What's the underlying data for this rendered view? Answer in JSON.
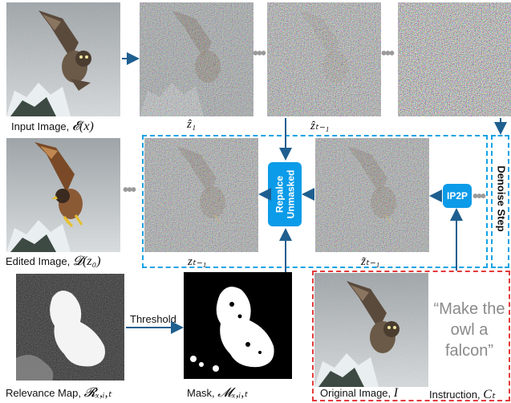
{
  "labels": {
    "input_image": "Input Image, ",
    "input_math": "𝓔(x)",
    "edited_image": "Edited Image, ",
    "edited_math": "𝓓(z₀)",
    "z1": "ẑ₁",
    "zt1_top": "ẑₜ₋₁",
    "zt1_mid": "zₜ₋₁",
    "zt1_tilde": "z̃ₜ₋₁",
    "relevance_map": "Relevance Map, ",
    "relevance_math": "𝓡ₓ,ᵢ,ₜ",
    "mask": "Mask, ",
    "mask_math": "𝓜ₓ,ᵢ,ₜ",
    "original_image": "Original Image, ",
    "original_math": "I",
    "instruction": "Instruction, ",
    "instruction_math": "Cₜ",
    "threshold": "Threshold",
    "ip2p": "IP2P",
    "replace_line1": "Repalce",
    "replace_line2": "Unmasked",
    "denoise_step": "Denoise Step",
    "quote": "“Make the owl a falcon”"
  },
  "colors": {
    "accent_blue": "#0c9be8",
    "dashed_blue": "#13a2e6",
    "dashed_red": "#e23b3b",
    "arrow": "#1f5f8f",
    "quote_gray": "#8a8a8a"
  }
}
